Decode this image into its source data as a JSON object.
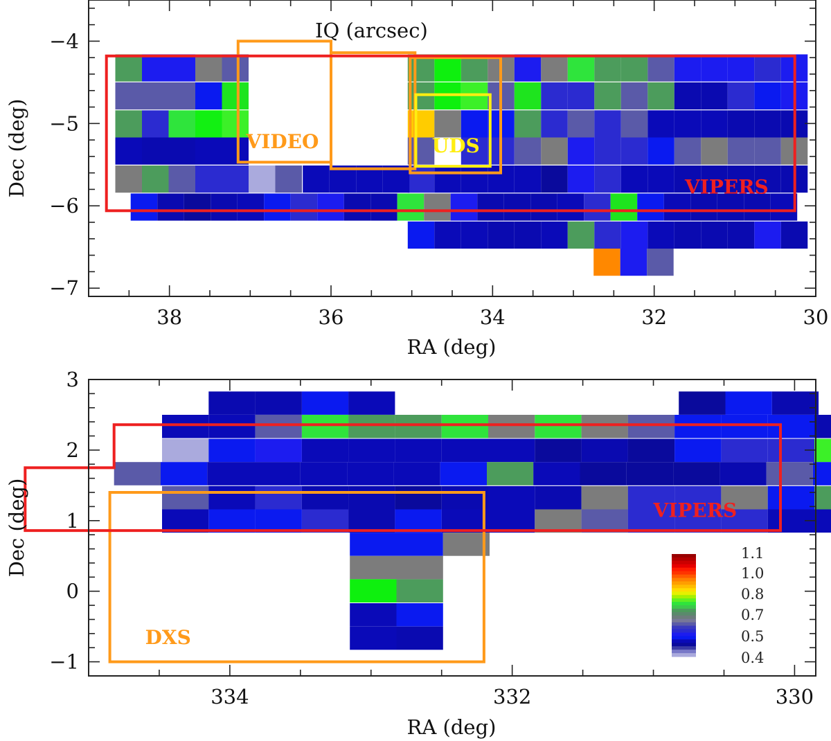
{
  "chart_data": [
    {
      "type": "heatmap",
      "title": "IQ (arcsec)",
      "xlabel": "RA (deg)",
      "ylabel": "Dec (deg)",
      "xlim": [
        39.0,
        30.0
      ],
      "ylim": [
        -7.1,
        -3.5
      ],
      "xticks": [
        38,
        36,
        34,
        32,
        30
      ],
      "xtick_labels": [
        "38",
        "36",
        "34",
        "32",
        "30"
      ],
      "yticks": [
        -4,
        -5,
        -6,
        -7
      ],
      "ytick_labels": [
        "−4",
        "−5",
        "−6",
        "−7"
      ],
      "tiles": [
        {
          "ra": 38.67,
          "dec": -4.16,
          "w": 0.33,
          "h": 0.33,
          "cols": [
            "#4c9c5c",
            "#1c1cf0",
            "#1c1cf0",
            "#7c7c7c",
            "#5a5aa8"
          ]
        },
        {
          "ra": 38.67,
          "dec": -4.5,
          "w": 0.33,
          "h": 0.33,
          "cols": [
            "#5a5aa8",
            "#5a5aa8",
            "#5a5aa8",
            "#0a1af0",
            "#1ee41e"
          ]
        },
        {
          "ra": 38.67,
          "dec": -4.84,
          "w": 0.33,
          "h": 0.33,
          "cols": [
            "#4c9c5c",
            "#2b2bd0",
            "#2fe43c",
            "#12f012",
            "#3cf028"
          ]
        },
        {
          "ra": 38.67,
          "dec": -5.17,
          "w": 0.33,
          "h": 0.33,
          "cols": [
            "#0a0ab8",
            "#0a0ab0",
            "#0a0ab0",
            "#0a0ab8",
            "#0a0ab8"
          ]
        },
        {
          "ra": 38.67,
          "dec": -5.51,
          "w": 0.33,
          "h": 0.33,
          "cols": [
            "#7c7c7c",
            "#4c9c5c",
            "#5a5aa8",
            "#2b2bd0",
            "#2b2bd0",
            "#aaaadd",
            "#5a5aa8"
          ]
        },
        {
          "ra": 35.05,
          "dec": -4.16,
          "w": 0.33,
          "h": 0.33,
          "cols": [
            "#4c9c5c",
            "#0ef00e",
            "#4c9c5c",
            "#7c7c7c",
            "#1c1cf0",
            "#7c7c7c",
            "#2fe43c",
            "#4c9c5c",
            "#4c9c5c",
            "#5a5aa8",
            "#1c1cf0",
            "#1c1cf0",
            "#1c1cf0",
            "#2b2bd0",
            "#1c1cf0"
          ]
        },
        {
          "ra": 35.05,
          "dec": -4.5,
          "w": 0.33,
          "h": 0.33,
          "cols": [
            "#4c9c5c",
            "#0ef00e",
            "#3cf028",
            "#5a5aa8",
            "#1ee41e",
            "#2b2bd0",
            "#2b2bd0",
            "#4c9c5c",
            "#5a5aa8",
            "#4c9c5c",
            "#0a0ab0",
            "#0a0ab0",
            "#2b2bd0",
            "#0a1af0",
            "#1c1cf0"
          ]
        },
        {
          "ra": 35.05,
          "dec": -4.84,
          "w": 0.33,
          "h": 0.33,
          "cols": [
            "#ffcc00",
            "#7c7c7c",
            "#0a1af0",
            "#0a1af0",
            "#4c9c5c",
            "#2b2bd0",
            "#5a5aa8",
            "#2b2bd0",
            "#5a5aa8",
            "#0a0ab8",
            "#0a0ab8",
            "#0a0ab8",
            "#0a0ab0",
            "#0a0ab0",
            "#0a0ab0"
          ]
        },
        {
          "ra": 35.05,
          "dec": -5.17,
          "w": 0.33,
          "h": 0.33,
          "cols": [
            "#5a5aa8",
            "#ffffff",
            "#2b2bd0",
            "#2b2bd0",
            "#5a5aa8",
            "#7c7c7c",
            "#1c1cf0",
            "#2b2bd0",
            "#2b2bd0",
            "#0a1af0",
            "#5a5aa8",
            "#7c7c7c",
            "#5a5aa8",
            "#5a5aa8",
            "#7c7c7c"
          ]
        },
        {
          "ra": 35.05,
          "dec": -5.51,
          "w": 0.33,
          "h": 0.33,
          "cols": [
            "#2b2bd0",
            "#0a0ab8",
            "#0a0ab8",
            "#0a0ab8",
            "#0a0ab8",
            "#0a0a9c",
            "#1c1cf0",
            "#2b2bd0",
            "#0a0ab8",
            "#0a0ab8",
            "#0a0ab0",
            "#0a0ab0",
            "#0a0ab0",
            "#0a0ab0",
            "#0a0ab0"
          ]
        },
        {
          "ra": 36.35,
          "dec": -5.51,
          "w": 0.33,
          "h": 0.33,
          "cols": [
            "#0a0ab8",
            "#0a0ab8",
            "#0a0ab8",
            "#0a0ab8"
          ]
        },
        {
          "ra": 38.48,
          "dec": -5.85,
          "w": 0.33,
          "h": 0.33,
          "cols": [
            "#0a1af0",
            "#0a0ab0",
            "#0a0a9c",
            "#0a0ab0",
            "#0a0ab8",
            "#0a1af0",
            "#2b2bd0",
            "#1c1cf0",
            "#0a0ab0",
            "#0a0ab0",
            "#2fe43c",
            "#7c7c7c",
            "#1c1cf0",
            "#0a0ab0",
            "#0a0ab0",
            "#0a0ab0",
            "#0a0ab8",
            "#2b2bd0",
            "#1ee41e",
            "#0a1af0",
            "#0a0ab8",
            "#0a0ab0",
            "#0a0ab0",
            "#0a0ab0",
            "#0a0ab8"
          ]
        },
        {
          "ra": 35.05,
          "dec": -6.19,
          "w": 0.33,
          "h": 0.33,
          "cols": [
            "#0a1af0",
            "#0a0ab8",
            "#0a0ab8",
            "#0a0ab0",
            "#0a0ab0",
            "#0a0ab8",
            "#4c9c5c",
            "#2b2bd0",
            "#1c1cf0",
            "#0a0ab8",
            "#0a0ab0",
            "#0a0ab0",
            "#0a0ab0",
            "#1c1cf0",
            "#0a0ab0"
          ]
        },
        {
          "ra": 32.75,
          "dec": -6.52,
          "w": 0.33,
          "h": 0.33,
          "cols": [
            "#ff8800",
            "#1c1cf0",
            "#5a5aa8"
          ]
        }
      ],
      "regions": [
        {
          "label": "VIDEO",
          "color": "#ff9a1a",
          "ra": [
            37.15,
            36.0
          ],
          "dec": [
            -4.0,
            -5.47
          ],
          "label_ra": 37.05,
          "label_dec": -5.3
        },
        {
          "label": "",
          "color": "#ff9a1a",
          "ra": [
            36.0,
            34.96
          ],
          "dec": [
            -4.14,
            -5.55
          ],
          "label_ra": 0,
          "label_dec": 0
        },
        {
          "label": "",
          "color": "#ff9a1a",
          "ra": [
            35.02,
            33.9
          ],
          "dec": [
            -4.2,
            -5.6
          ],
          "label_ra": 0,
          "label_dec": 0
        },
        {
          "label": "UDS",
          "color": "#ffee11",
          "ra": [
            34.95,
            34.03
          ],
          "dec": [
            -4.65,
            -5.52
          ],
          "label_ra": 34.75,
          "label_dec": -5.35
        },
        {
          "label": "VIPERS",
          "color": "#ee2020",
          "ra": [
            38.78,
            30.26
          ],
          "dec": [
            -4.18,
            -6.06
          ],
          "label_ra": 31.62,
          "label_dec": -5.85
        }
      ]
    },
    {
      "type": "heatmap",
      "title": "",
      "xlabel": "RA (deg)",
      "ylabel": "Dec (deg)",
      "xlim": [
        335.0,
        329.85
      ],
      "ylim": [
        -1.2,
        3.0
      ],
      "xticks": [
        334,
        332,
        330
      ],
      "xtick_labels": [
        "334",
        "332",
        "330"
      ],
      "yticks": [
        3,
        2,
        1,
        0,
        -1
      ],
      "ytick_labels": [
        "3",
        "2",
        "1",
        "0",
        "−1"
      ],
      "tiles": [
        {
          "ra": 334.15,
          "dec": 2.83,
          "w": 0.33,
          "h": 0.33,
          "cols": [
            "#0a0ab0",
            "#0a0ab0",
            "#0a1af0",
            "#0a0ab8"
          ]
        },
        {
          "ra": 334.48,
          "dec": 2.5,
          "w": 0.33,
          "h": 0.33,
          "cols": [
            "#0a0ab8",
            "#0a0ab8",
            "#5a5aa8",
            "#2fe43c",
            "#4c9c5c",
            "#4c9c5c",
            "#2fe43c",
            "#7c7c7c",
            "#2fe43c",
            "#7c7c7c",
            "#5a5aa8",
            "#0a1af0",
            "#0a1af0",
            "#0a1af0",
            "#0a0ab0"
          ]
        },
        {
          "ra": 330.82,
          "dec": 2.83,
          "w": 0.33,
          "h": 0.33,
          "cols": [
            "#0a0a9c",
            "#0a1af0",
            "#0a0ab0"
          ]
        },
        {
          "ra": 334.48,
          "dec": 2.16,
          "w": 0.33,
          "h": 0.33,
          "cols": [
            "#aaaadd",
            "#0a1af0",
            "#1c1cf0",
            "#0a0ab8",
            "#0a0ab8",
            "#0a0ab8",
            "#0a0ab8",
            "#0a0ab8",
            "#0a0a9c",
            "#0a0ab0",
            "#0a0a9c",
            "#0a1af0",
            "#2b2bd0",
            "#2b2bd0",
            "#3cf028"
          ]
        },
        {
          "ra": 334.82,
          "dec": 1.83,
          "w": 0.33,
          "h": 0.33,
          "cols": [
            "#5a5aa8",
            "#0a1af0",
            "#0a0ab8",
            "#0a0ab8",
            "#0a0ab8",
            "#0a0ab8",
            "#0a0ab8",
            "#0a1af0",
            "#4c9c5c",
            "#0a0ab8",
            "#0a0a9c",
            "#0a0a9c",
            "#0a0a9c",
            "#0a0ab0",
            "#5a5aa8",
            "#0a1af0",
            "#2b2bd0"
          ]
        },
        {
          "ra": 334.15,
          "dec": 1.49,
          "w": 0.33,
          "h": 0.33,
          "cols": [
            "#0a0a9c",
            "#2b2bd0",
            "#0a0ab0",
            "#0a0ab0",
            "#0a0a9c",
            "#0a0ab0",
            "#0a0ab8",
            "#0a0ab0",
            "#7c7c7c",
            "#2b2bd0",
            "#2b2bd0",
            "#7c7c7c",
            "#0a1af0",
            "#4c9c5c"
          ]
        },
        {
          "ra": 334.48,
          "dec": 1.49,
          "w": 0.33,
          "h": 0.33,
          "cols": [
            "#5a5aa8",
            "#0a0ab8"
          ]
        },
        {
          "ra": 334.48,
          "dec": 1.16,
          "w": 0.33,
          "h": 0.33,
          "cols": [
            "#0a0ab8",
            "#0a1af0",
            "#0a1af0",
            "#2b2bd0",
            "#0a0ab0",
            "#0a1af0",
            "#0a0ab8",
            "#0a0ab8",
            "#7c7c7c",
            "#5a5aa8",
            "#2b2bd0",
            "#2b2bd0",
            "#2b2bd0",
            "#0a0ab8",
            "#0a0ab8",
            "#0a0ab8"
          ]
        },
        {
          "ra": 333.15,
          "dec": 0.83,
          "w": 0.33,
          "h": 0.33,
          "cols": [
            "#0a1af0",
            "#0a1af0",
            "#7c7c7c"
          ]
        },
        {
          "ra": 333.15,
          "dec": 0.5,
          "w": 0.33,
          "h": 0.33,
          "cols": [
            "#7c7c7c",
            "#7c7c7c"
          ]
        },
        {
          "ra": 333.15,
          "dec": 0.17,
          "w": 0.33,
          "h": 0.33,
          "cols": [
            "#0ef00e",
            "#4c9c5c"
          ]
        },
        {
          "ra": 333.15,
          "dec": -0.17,
          "w": 0.33,
          "h": 0.33,
          "cols": [
            "#0a0ab8",
            "#0a1af0"
          ]
        },
        {
          "ra": 333.15,
          "dec": -0.5,
          "w": 0.33,
          "h": 0.33,
          "cols": [
            "#0a0ab8",
            "#0a0ab0"
          ]
        }
      ],
      "regions": [
        {
          "label": "DXS",
          "color": "#ff9a1a",
          "poly": [
            [
              334.85,
              1.4
            ],
            [
              332.2,
              1.4
            ],
            [
              332.2,
              -1.0
            ],
            [
              334.85,
              -1.0
            ]
          ],
          "label_ra": 334.6,
          "label_dec": -0.75
        },
        {
          "label": "VIPERS",
          "color": "#ee2020",
          "poly": [
            [
              334.82,
              2.36
            ],
            [
              330.1,
              2.36
            ],
            [
              330.1,
              0.86
            ],
            [
              335.45,
              0.86
            ],
            [
              335.45,
              1.75
            ],
            [
              334.82,
              1.75
            ]
          ],
          "label_ra": 331.0,
          "label_dec": 1.05
        }
      ]
    }
  ],
  "legend": {
    "ticks": [
      "1.1",
      "1.0",
      "0.8",
      "0.7",
      "0.5",
      "0.4"
    ],
    "bands": [
      "#990000",
      "#b30000",
      "#cc0000",
      "#e60000",
      "#ff1a00",
      "#ff3300",
      "#ff5a00",
      "#ff8000",
      "#ff9e00",
      "#ffbd00",
      "#ffdc00",
      "#e6f000",
      "#a6f000",
      "#60f020",
      "#2fe43c",
      "#3cc84c",
      "#4c9c5c",
      "#5a8a6c",
      "#6c7c7c",
      "#787898",
      "#5a5aa8",
      "#3a3ac0",
      "#2b2bd0",
      "#1c1cf0",
      "#0a1af0",
      "#0a0ab8",
      "#0a0a9c",
      "#3a3aa6",
      "#7878c8",
      "#aaaadd"
    ]
  }
}
